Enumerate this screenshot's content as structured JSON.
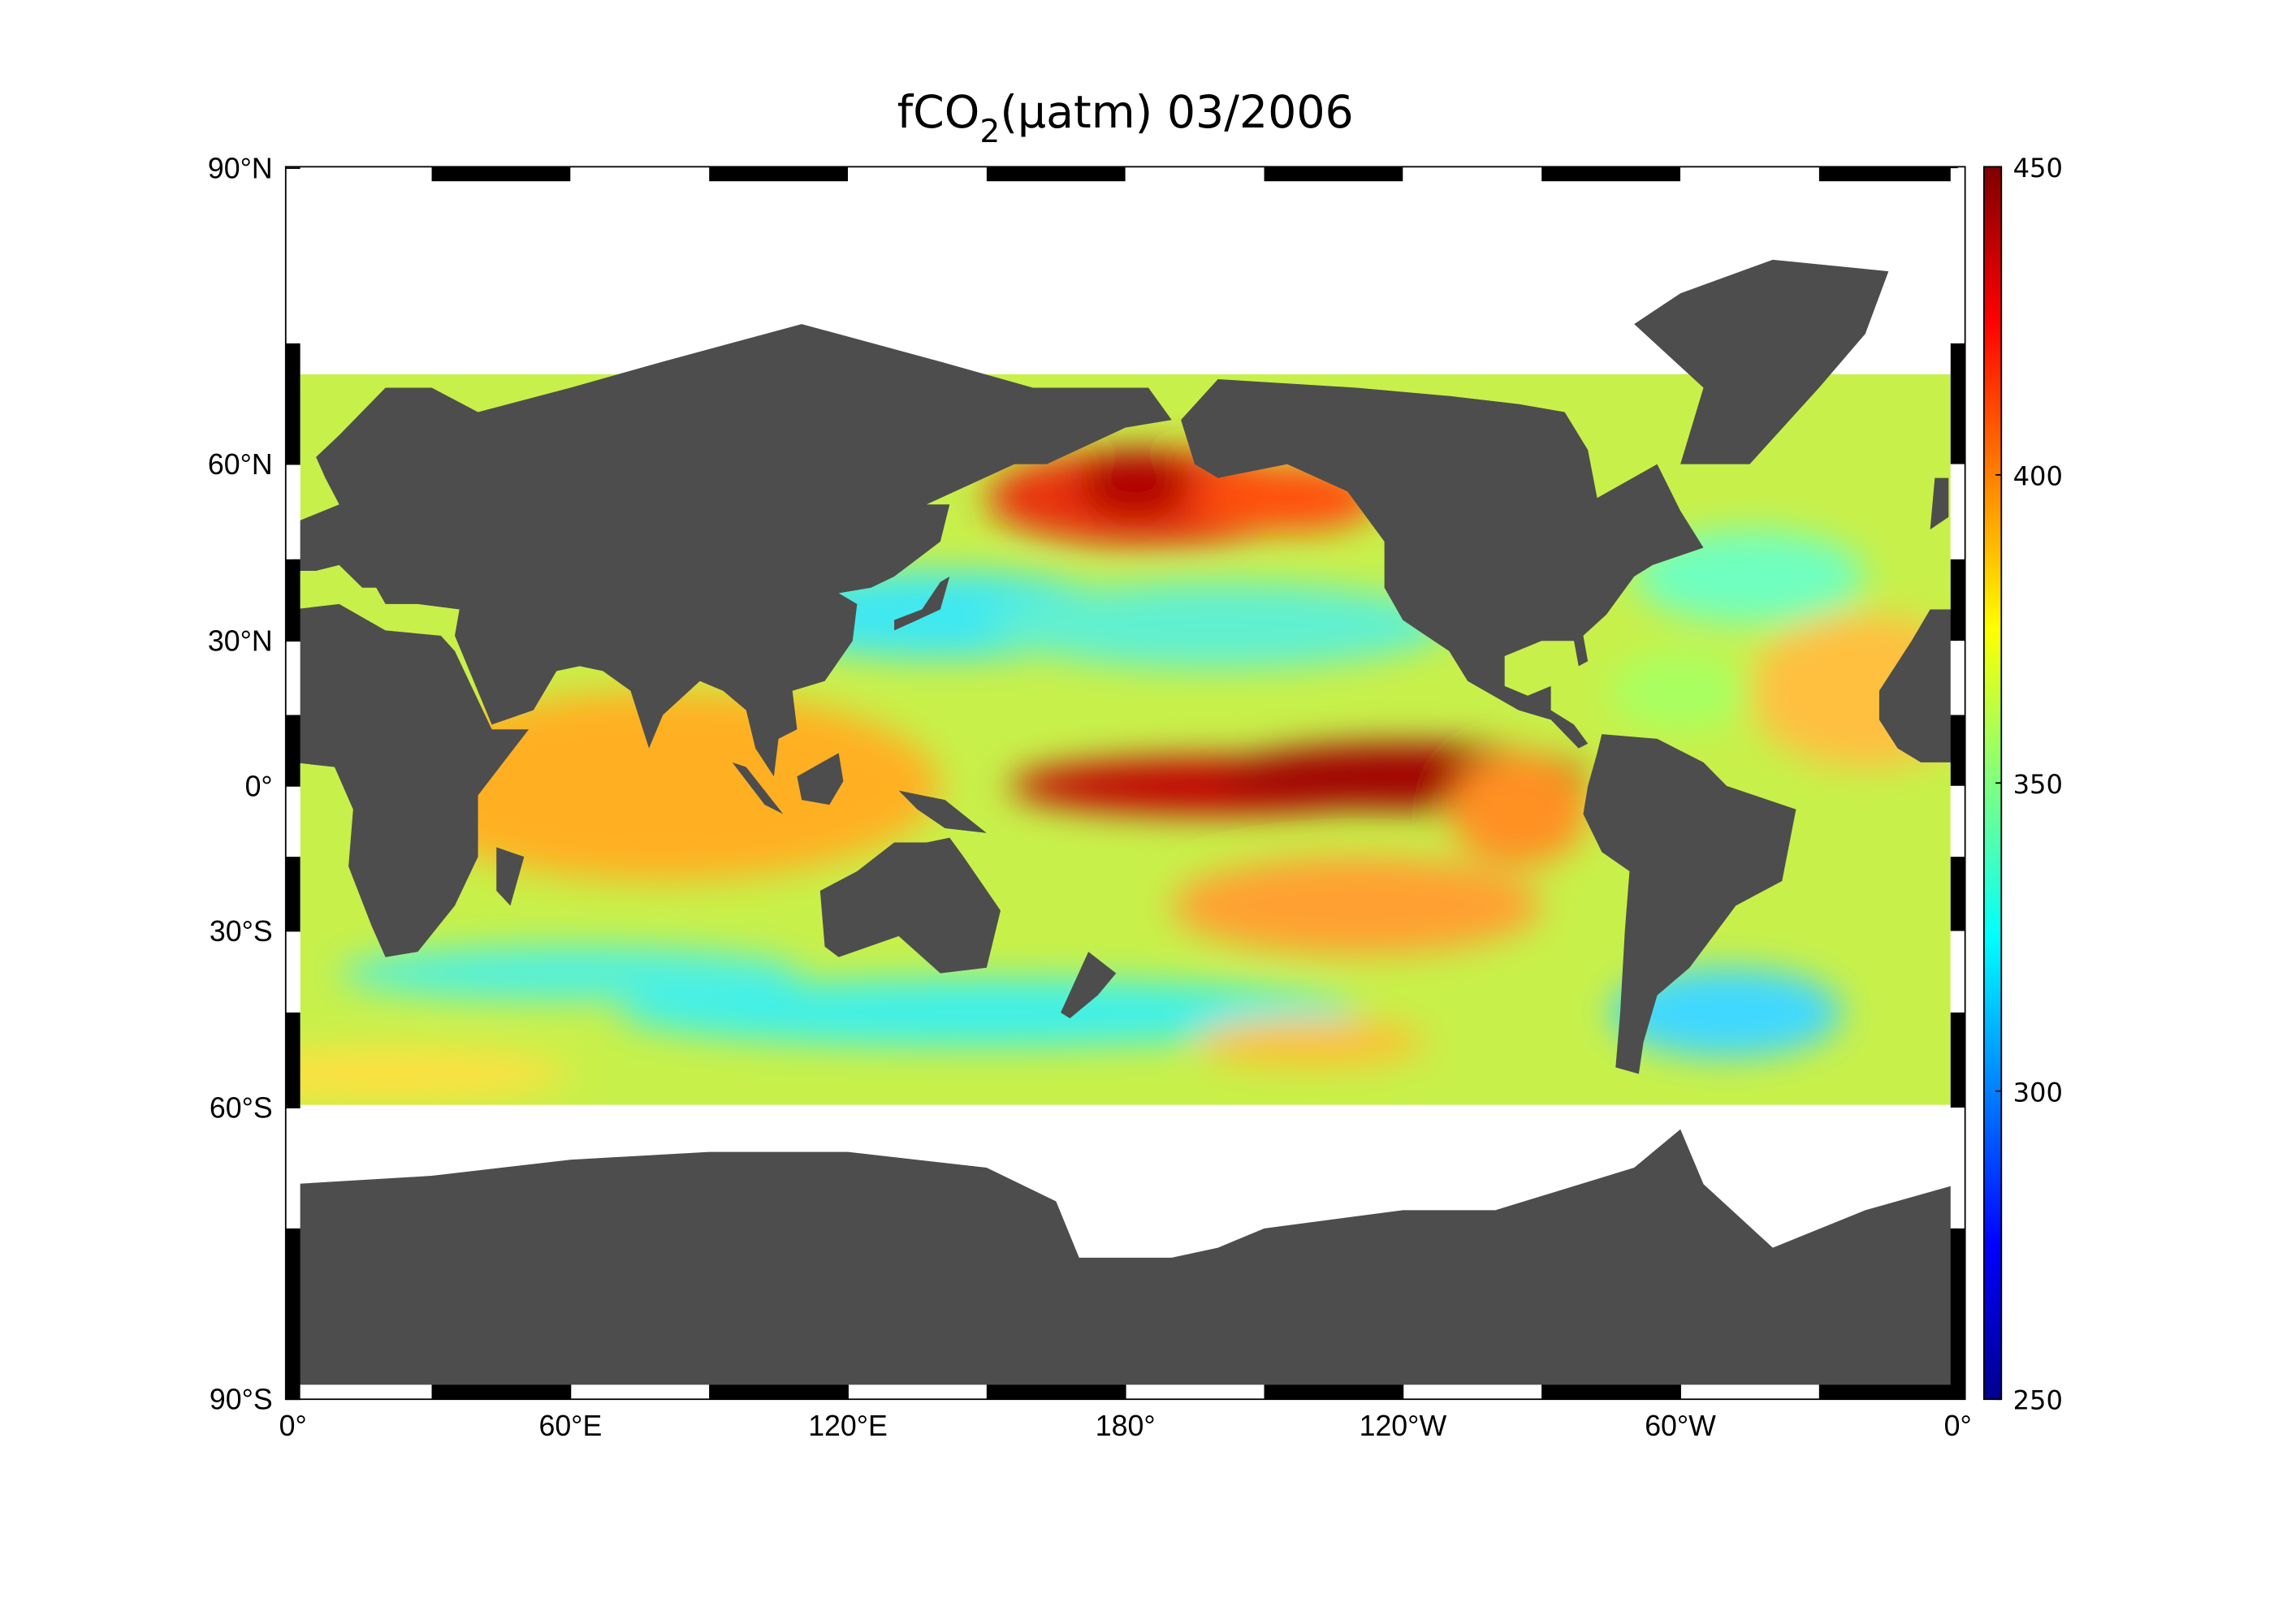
{
  "title": {
    "main": "fCO",
    "subscript": "2",
    "rest": "(µatm)  03/2006"
  },
  "map": {
    "lat_ticks": [
      {
        "value": 90,
        "label": "90°N"
      },
      {
        "value": 60,
        "label": "60°N"
      },
      {
        "value": 30,
        "label": "30°N"
      },
      {
        "value": 0,
        "label": "0°"
      },
      {
        "value": -30,
        "label": "30°S"
      },
      {
        "value": -60,
        "label": "60°S"
      },
      {
        "value": -90,
        "label": "90°S"
      }
    ],
    "lon_ticks": [
      {
        "value": 0,
        "label": "0°"
      },
      {
        "value": 60,
        "label": "60°E"
      },
      {
        "value": 120,
        "label": "120°E"
      },
      {
        "value": 180,
        "label": "180°"
      },
      {
        "value": 240,
        "label": "120°W"
      },
      {
        "value": 300,
        "label": "60°W"
      },
      {
        "value": 360,
        "label": "0°"
      }
    ]
  },
  "colorbar": {
    "lim": [
      250,
      450
    ],
    "ticks": [
      250,
      300,
      350,
      400,
      450
    ]
  }
}
